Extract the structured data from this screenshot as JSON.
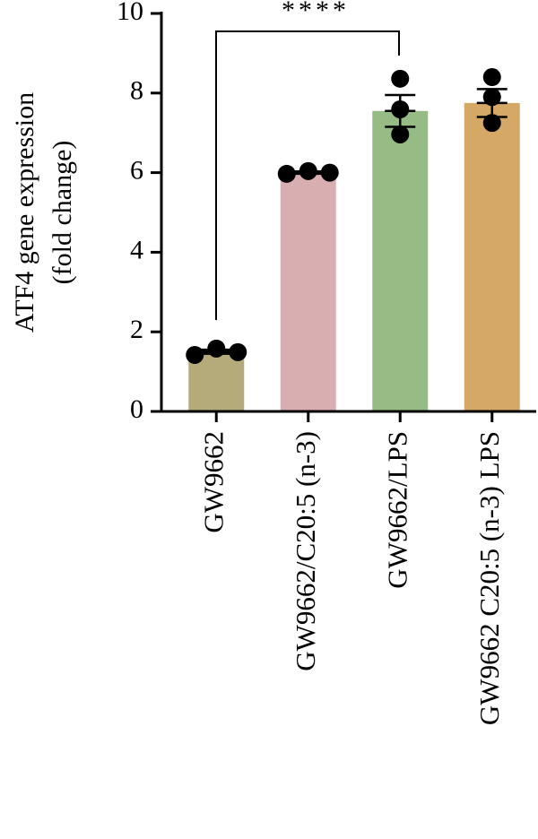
{
  "chart_data": {
    "type": "bar",
    "ylabel": [
      "ATF4 gene expression",
      "(fold change)"
    ],
    "categories": [
      "GW9662",
      "GW9662/C20:5 (n-3)",
      "GW9662/LPS",
      "GW9662 C20:5 (n-3) LPS"
    ],
    "values": [
      1.5,
      6.0,
      7.55,
      7.75
    ],
    "errors": [
      0.05,
      0.03,
      0.4,
      0.35
    ],
    "points": [
      [
        1.42,
        1.58,
        1.49
      ],
      [
        5.97,
        6.04,
        6.0
      ],
      [
        8.36,
        7.59,
        6.96
      ],
      [
        8.4,
        7.9,
        7.25
      ]
    ],
    "colors": [
      "#b5aa7a",
      "#d9aeb0",
      "#97bb85",
      "#d6a866"
    ],
    "significance": "****",
    "ylim": [
      0,
      10
    ],
    "yticks": [
      0,
      2,
      4,
      6,
      8,
      10
    ]
  }
}
